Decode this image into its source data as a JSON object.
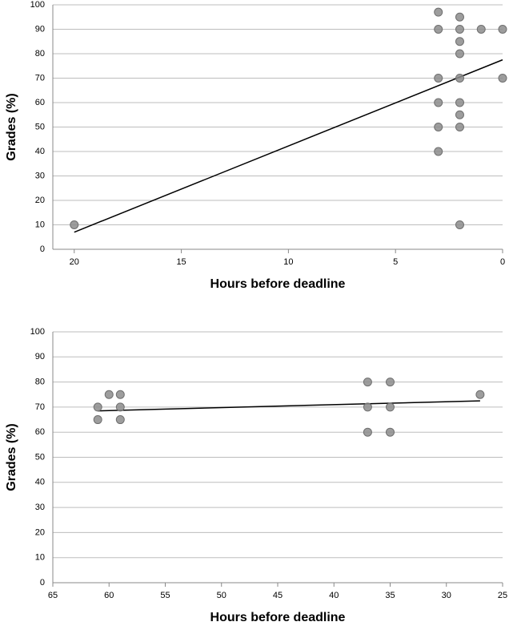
{
  "chart_data": [
    {
      "type": "scatter",
      "x_label": "Hours before deadline",
      "y_label": "Grades (%)",
      "x": [
        20,
        3,
        3,
        3,
        3,
        3,
        3,
        2,
        2,
        2,
        2,
        2,
        2,
        2,
        2,
        2,
        1,
        0,
        0
      ],
      "values": [
        10,
        97,
        90,
        70,
        60,
        50,
        40,
        95,
        90,
        85,
        80,
        70,
        60,
        55,
        50,
        10,
        90,
        90,
        70
      ],
      "color": "#8c8c8c",
      "trendline": {
        "x": [
          20,
          0
        ],
        "values": [
          7,
          77.5
        ],
        "color": "#000000"
      },
      "xlim": [
        21,
        0
      ],
      "xticks": [
        20,
        15,
        10,
        5,
        0
      ],
      "ylim": [
        0,
        100
      ],
      "yticks": [
        0,
        10,
        20,
        30,
        40,
        50,
        60,
        70,
        80,
        90,
        100
      ],
      "grid": true
    },
    {
      "type": "scatter",
      "x_label": "Hours before deadline",
      "y_label": "Grades (%)",
      "x": [
        61,
        61,
        60,
        59,
        59,
        59,
        37,
        37,
        37,
        35,
        35,
        35,
        27
      ],
      "values": [
        70,
        65,
        75,
        75,
        70,
        65,
        80,
        70,
        60,
        80,
        70,
        60,
        75
      ],
      "color": "#8c8c8c",
      "trendline": {
        "x": [
          61,
          27
        ],
        "values": [
          68.5,
          72.5
        ],
        "color": "#000000"
      },
      "xlim": [
        65,
        25
      ],
      "xticks": [
        65,
        60,
        55,
        50,
        45,
        40,
        35,
        30,
        25
      ],
      "ylim": [
        0,
        100
      ],
      "yticks": [
        0,
        10,
        20,
        30,
        40,
        50,
        60,
        70,
        80,
        90,
        100
      ],
      "grid": true
    }
  ]
}
